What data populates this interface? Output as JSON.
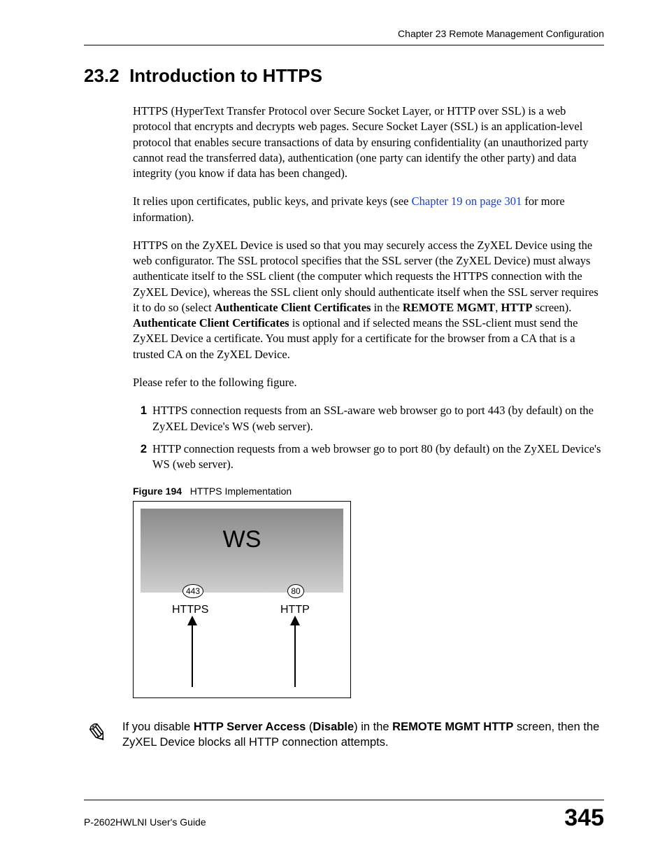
{
  "header": {
    "chapter": "Chapter 23 Remote Management Configuration"
  },
  "section": {
    "number": "23.2",
    "title": "Introduction to HTTPS"
  },
  "paragraphs": {
    "p1": "HTTPS (HyperText Transfer Protocol over Secure Socket Layer, or HTTP over SSL) is a web protocol that encrypts and decrypts web pages. Secure Socket Layer (SSL) is an application-level protocol that enables secure transactions of data by ensuring confidentiality (an unauthorized party cannot read the transferred data), authentication (one party can identify the other party) and data integrity (you know if data has been changed).",
    "p2_pre": "It relies upon certificates, public keys, and private keys (see ",
    "p2_link": "Chapter 19 on page 301",
    "p2_post": " for more information).",
    "p3_a": "HTTPS on the ZyXEL Device is used so that you may securely access the ZyXEL Device using the web configurator. The SSL protocol specifies that the SSL server (the ZyXEL Device) must always authenticate itself to the SSL client (the computer which requests the HTTPS connection with the ZyXEL Device), whereas the SSL client only should authenticate itself when the SSL server requires it to do so (select ",
    "p3_b1": "Authenticate Client Certificates",
    "p3_c": " in the ",
    "p3_b2": "REMOTE MGMT",
    "p3_d": ", ",
    "p3_b3": "HTTP",
    "p3_e": " screen). ",
    "p3_b4": "Authenticate Client Certificates",
    "p3_f": " is optional and if selected means the SSL-client must send the ZyXEL Device a certificate. You must apply for a certificate for the browser from a CA that is a trusted CA on the ZyXEL Device.",
    "p4": "Please refer to the following figure."
  },
  "list": {
    "n1": "1",
    "t1": "HTTPS connection requests from an SSL-aware web browser go to port 443 (by default) on the ZyXEL Device's WS (web server).",
    "n2": "2",
    "t2": "HTTP connection requests from a web browser go to port 80 (by default) on the ZyXEL Device's WS (web server)."
  },
  "figure": {
    "label": "Figure 194",
    "caption": "HTTPS Implementation",
    "ws": "WS",
    "port443": "443",
    "port80": "80",
    "https": "HTTPS",
    "http": "HTTP"
  },
  "note": {
    "icon": "✎",
    "a": "If you disable ",
    "b1": "HTTP Server Access",
    "c": " (",
    "b2": "Disable",
    "d": ") in the ",
    "b3": "REMOTE MGMT HTTP",
    "e": " screen, then the ZyXEL Device blocks all HTTP connection attempts."
  },
  "footer": {
    "guide": "P-2602HWLNI User's Guide",
    "page": "345"
  },
  "colors": {
    "link": "#1a3fd1",
    "text": "#000000",
    "bg": "#ffffff"
  }
}
